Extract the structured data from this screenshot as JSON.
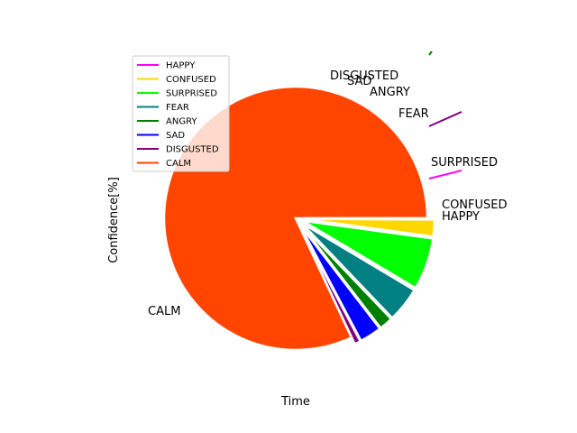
{
  "chart_data": {
    "type": "pie",
    "title": "",
    "xlabel": "Time",
    "ylabel": "Confidence[%]",
    "legend_position": "upper-left",
    "series": [
      {
        "name": "CALM",
        "value": 87.3,
        "color": "#ff4500"
      },
      {
        "name": "DISGUSTED",
        "value": 0.8,
        "color": "#800080"
      },
      {
        "name": "SAD",
        "value": 2.9,
        "color": "#0000ff"
      },
      {
        "name": "ANGRY",
        "value": 1.8,
        "color": "#008000"
      },
      {
        "name": "FEAR",
        "value": 4.6,
        "color": "#008080"
      },
      {
        "name": "SURPRISED",
        "value": 6.8,
        "color": "#00ff00"
      },
      {
        "name": "CONFUSED",
        "value": 2.2,
        "color": "#ffd700"
      },
      {
        "name": "HAPPY",
        "value": 0.1,
        "color": "#ff00ff"
      }
    ],
    "legend": [
      {
        "label": "HAPPY",
        "color": "#ff00ff"
      },
      {
        "label": "CONFUSED",
        "color": "#ffd700"
      },
      {
        "label": "SURPRISED",
        "color": "#00ff00"
      },
      {
        "label": "FEAR",
        "color": "#008080"
      },
      {
        "label": "ANGRY",
        "color": "#008000"
      },
      {
        "label": "SAD",
        "color": "#0000ff"
      },
      {
        "label": "DISGUSTED",
        "color": "#800080"
      },
      {
        "label": "CALM",
        "color": "#ff4500"
      }
    ]
  }
}
